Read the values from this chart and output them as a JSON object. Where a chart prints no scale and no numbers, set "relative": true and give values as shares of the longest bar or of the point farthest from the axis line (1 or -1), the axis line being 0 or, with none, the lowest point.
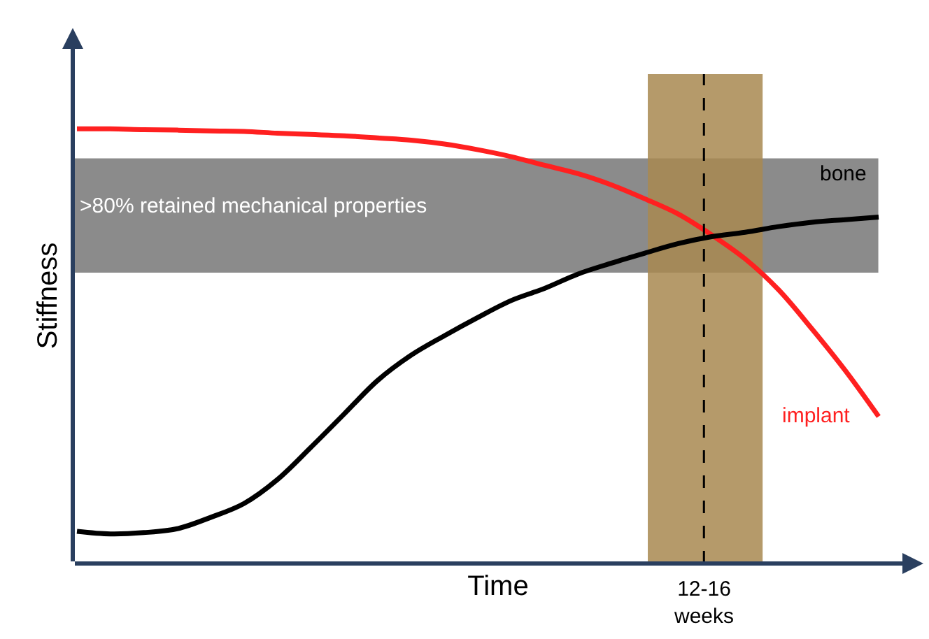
{
  "chart_data": {
    "type": "line",
    "relative": true,
    "xlabel": "Time",
    "ylabel": "Stiffness",
    "categories": [
      null,
      null,
      null,
      null,
      null,
      null,
      null,
      null,
      null,
      null,
      null,
      null,
      null,
      null,
      null,
      null,
      null,
      null,
      null,
      null,
      null,
      null,
      null,
      null,
      null
    ],
    "annotations": [
      "12-16\nweeks"
    ],
    "series": [
      {
        "name": "implant",
        "color": "#ff2020",
        "values": [
          1.0,
          1.0,
          0.998,
          0.997,
          0.995,
          0.994,
          0.99,
          0.987,
          0.984,
          0.979,
          0.974,
          0.965,
          0.952,
          0.936,
          0.916,
          0.897,
          0.871,
          0.839,
          0.804,
          0.756,
          0.701,
          0.63,
          0.54,
          0.444,
          0.338
        ]
      },
      {
        "name": "bone",
        "color": "#000000",
        "values": [
          0.074,
          0.068,
          0.071,
          0.08,
          0.106,
          0.138,
          0.193,
          0.267,
          0.344,
          0.421,
          0.479,
          0.524,
          0.566,
          0.605,
          0.633,
          0.666,
          0.691,
          0.714,
          0.736,
          0.752,
          0.762,
          0.775,
          0.785,
          0.791,
          0.797
        ]
      }
    ],
    "bands": [
      {
        "axis": "y",
        "from": 0.669,
        "to": 0.932,
        "label": ">80% retained mechanical properties",
        "color": "#6e6e6e"
      }
    ],
    "grid": false,
    "legend": false,
    "line_style": "solid",
    "marker": "none"
  }
}
